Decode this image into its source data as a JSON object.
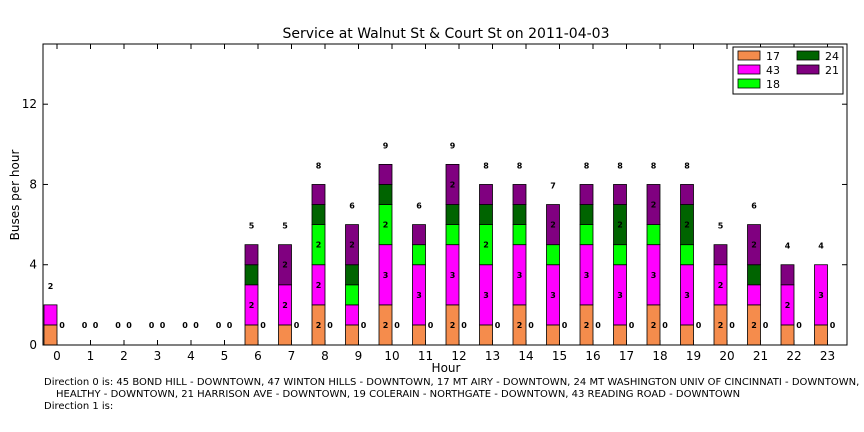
{
  "chart_data": {
    "type": "bar",
    "stacked": true,
    "title": "Service at Walnut St & Court St on 2011-04-03",
    "xlabel": "Hour",
    "ylabel": "Buses per hour",
    "ylim": [
      0,
      15
    ],
    "yticks": [
      0,
      4,
      8,
      12
    ],
    "grid": false,
    "legend_position": "top-right",
    "categories": [
      "0",
      "1",
      "2",
      "3",
      "4",
      "5",
      "6",
      "7",
      "8",
      "9",
      "10",
      "11",
      "12",
      "13",
      "14",
      "15",
      "16",
      "17",
      "18",
      "19",
      "20",
      "21",
      "22",
      "23"
    ],
    "groups": [
      {
        "direction": "0",
        "series": [
          {
            "name": "17",
            "color": "#f58c4c",
            "values": [
              1,
              0,
              0,
              0,
              0,
              0,
              1,
              1,
              2,
              1,
              2,
              1,
              2,
              1,
              2,
              1,
              2,
              1,
              2,
              1,
              2,
              2,
              1,
              1
            ]
          },
          {
            "name": "43",
            "color": "#ff00ff",
            "values": [
              1,
              0,
              0,
              0,
              0,
              0,
              2,
              2,
              2,
              1,
              3,
              3,
              3,
              3,
              3,
              3,
              3,
              3,
              3,
              3,
              2,
              1,
              2,
              3
            ]
          },
          {
            "name": "18",
            "color": "#00ff00",
            "values": [
              0,
              0,
              0,
              0,
              0,
              0,
              0,
              0,
              2,
              1,
              2,
              1,
              1,
              2,
              1,
              1,
              1,
              1,
              1,
              1,
              0,
              0,
              0,
              0
            ]
          },
          {
            "name": "24",
            "color": "#006400",
            "values": [
              0,
              0,
              0,
              0,
              0,
              0,
              1,
              0,
              1,
              1,
              1,
              0,
              1,
              1,
              1,
              0,
              1,
              2,
              0,
              2,
              0,
              1,
              0,
              0
            ]
          },
          {
            "name": "21",
            "color": "#800080",
            "values": [
              0,
              0,
              0,
              0,
              0,
              0,
              1,
              2,
              1,
              2,
              1,
              1,
              2,
              1,
              1,
              2,
              1,
              1,
              2,
              1,
              1,
              2,
              1,
              0
            ]
          }
        ],
        "totals": [
          2,
          0,
          0,
          0,
          0,
          0,
          5,
          5,
          8,
          6,
          9,
          6,
          9,
          8,
          8,
          7,
          8,
          8,
          8,
          8,
          5,
          6,
          4,
          4
        ]
      },
      {
        "direction": "1",
        "totals": [
          0,
          0,
          0,
          0,
          0,
          0,
          0,
          0,
          0,
          0,
          0,
          0,
          0,
          0,
          0,
          0,
          0,
          0,
          0,
          0,
          0,
          0,
          0,
          0
        ]
      }
    ]
  },
  "legend": [
    {
      "label": "17",
      "color": "#f58c4c"
    },
    {
      "label": "43",
      "color": "#ff00ff"
    },
    {
      "label": "18",
      "color": "#00ff00"
    },
    {
      "label": "24",
      "color": "#006400"
    },
    {
      "label": "21",
      "color": "#800080"
    }
  ],
  "notes": {
    "direction0_line1": "Direction 0 is: 45 BOND HILL - DOWNTOWN, 47 WINTON HILLS - DOWNTOWN, 17 MT AIRY - DOWNTOWN, 24 MT WASHINGTON UNIV OF CINCINNATI - DOWNTOWN,",
    "direction0_line2": "HEALTHY - DOWNTOWN, 21 HARRISON AVE - DOWNTOWN, 19 COLERAIN - NORTHGATE - DOWNTOWN, 43 READING ROAD - DOWNTOWN",
    "direction1": "Direction 1 is:"
  }
}
